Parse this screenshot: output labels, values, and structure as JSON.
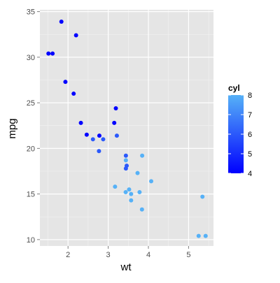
{
  "chart_data": {
    "type": "scatter",
    "title": "",
    "xlabel": "wt",
    "ylabel": "mpg",
    "xlim": [
      1.3,
      5.62
    ],
    "ylim": [
      9.3,
      35.2
    ],
    "x_ticks": [
      2,
      3,
      4,
      5
    ],
    "y_ticks": [
      10,
      15,
      20,
      25,
      30,
      35
    ],
    "x_tick_labels": [
      "2",
      "3",
      "4",
      "5"
    ],
    "y_tick_labels": [
      "10",
      "15",
      "20",
      "25",
      "30",
      "35"
    ],
    "grid": true,
    "panel_background": "#e5e5e5",
    "grid_color": "#ffffff",
    "legend": {
      "title": "cyl",
      "position": "right",
      "type": "colorbar",
      "min": 4,
      "max": 8,
      "ticks": [
        4,
        5,
        6,
        7,
        8
      ],
      "tick_labels": [
        "4",
        "5",
        "6",
        "7",
        "8"
      ],
      "low_color": "#132b43",
      "low_color_display": "#0000ff",
      "high_color_display": "#56b1f7"
    },
    "points": [
      {
        "x": 2.62,
        "y": 21.0,
        "cyl": 6
      },
      {
        "x": 2.875,
        "y": 21.0,
        "cyl": 6
      },
      {
        "x": 2.32,
        "y": 22.8,
        "cyl": 4
      },
      {
        "x": 3.215,
        "y": 21.4,
        "cyl": 6
      },
      {
        "x": 3.44,
        "y": 18.7,
        "cyl": 8
      },
      {
        "x": 3.46,
        "y": 18.1,
        "cyl": 6
      },
      {
        "x": 3.57,
        "y": 14.3,
        "cyl": 8
      },
      {
        "x": 3.19,
        "y": 24.4,
        "cyl": 4
      },
      {
        "x": 3.15,
        "y": 22.8,
        "cyl": 4
      },
      {
        "x": 3.44,
        "y": 19.2,
        "cyl": 6
      },
      {
        "x": 3.44,
        "y": 17.8,
        "cyl": 6
      },
      {
        "x": 4.07,
        "y": 16.4,
        "cyl": 8
      },
      {
        "x": 3.73,
        "y": 17.3,
        "cyl": 8
      },
      {
        "x": 3.78,
        "y": 15.2,
        "cyl": 8
      },
      {
        "x": 5.25,
        "y": 10.4,
        "cyl": 8
      },
      {
        "x": 5.424,
        "y": 10.4,
        "cyl": 8
      },
      {
        "x": 5.345,
        "y": 14.7,
        "cyl": 8
      },
      {
        "x": 2.2,
        "y": 32.4,
        "cyl": 4
      },
      {
        "x": 1.615,
        "y": 30.4,
        "cyl": 4
      },
      {
        "x": 1.835,
        "y": 33.9,
        "cyl": 4
      },
      {
        "x": 2.465,
        "y": 21.5,
        "cyl": 4
      },
      {
        "x": 3.52,
        "y": 15.5,
        "cyl": 8
      },
      {
        "x": 3.435,
        "y": 15.2,
        "cyl": 8
      },
      {
        "x": 3.84,
        "y": 13.3,
        "cyl": 8
      },
      {
        "x": 3.845,
        "y": 19.2,
        "cyl": 8
      },
      {
        "x": 1.935,
        "y": 27.3,
        "cyl": 4
      },
      {
        "x": 2.14,
        "y": 26.0,
        "cyl": 4
      },
      {
        "x": 1.513,
        "y": 30.4,
        "cyl": 4
      },
      {
        "x": 3.17,
        "y": 15.8,
        "cyl": 8
      },
      {
        "x": 2.77,
        "y": 19.7,
        "cyl": 6
      },
      {
        "x": 3.57,
        "y": 15.0,
        "cyl": 8
      },
      {
        "x": 2.78,
        "y": 21.4,
        "cyl": 4
      }
    ]
  }
}
